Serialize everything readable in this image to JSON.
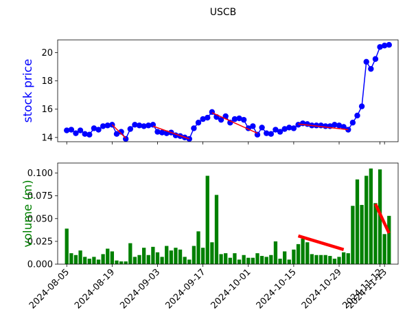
{
  "chart_data": {
    "title": "USCB",
    "shared_x_ticks": [
      "2024-08-05",
      "2024-08-19",
      "2024-09-03",
      "2024-09-17",
      "2024-10-01",
      "2024-10-15",
      "2024-10-29",
      "2024-11-12",
      "2024-11-13"
    ],
    "panels": [
      {
        "type": "line",
        "ylabel": "stock price",
        "ylabel_color": "#0000ff",
        "series_color": "#0000ff",
        "trend_color": "#ff0000",
        "ylim": [
          13.7,
          20.9
        ],
        "yticks": [
          "14",
          "16",
          "18",
          "20"
        ],
        "y": [
          14.5,
          14.55,
          14.3,
          14.5,
          14.25,
          14.2,
          14.65,
          14.55,
          14.8,
          14.85,
          14.9,
          14.25,
          14.4,
          13.9,
          14.6,
          14.9,
          14.85,
          14.8,
          14.85,
          14.9,
          14.4,
          14.35,
          14.3,
          14.35,
          14.15,
          14.1,
          14.0,
          13.9,
          14.65,
          15.05,
          15.3,
          15.4,
          15.8,
          15.45,
          15.25,
          15.5,
          15.05,
          15.3,
          15.35,
          15.25,
          14.65,
          14.8,
          14.2,
          14.7,
          14.3,
          14.25,
          14.55,
          14.4,
          14.6,
          14.7,
          14.65,
          14.9,
          15.0,
          14.95,
          14.85,
          14.85,
          14.85,
          14.8,
          14.8,
          14.9,
          14.85,
          14.75,
          14.55,
          15.05,
          15.55,
          16.2,
          19.35,
          18.85,
          19.55,
          20.4,
          20.5,
          20.55
        ],
        "trend_lines": [
          {
            "x": [
              10,
              13
            ],
            "y": [
              14.9,
              13.95
            ]
          },
          {
            "x": [
              19,
              27
            ],
            "y": [
              14.8,
              13.9
            ]
          },
          {
            "x": [
              32,
              42
            ],
            "y": [
              15.75,
              14.3
            ]
          },
          {
            "x": [
              51,
              62
            ],
            "y": [
              14.95,
              14.55
            ]
          }
        ]
      },
      {
        "type": "bar",
        "ylabel": "volume (m)",
        "ylabel_color": "#008000",
        "series_color": "#008000",
        "trend_color": "#ff0000",
        "ylim": [
          0,
          0.111
        ],
        "yticks": [
          "0.000",
          "0.025",
          "0.050",
          "0.075",
          "0.100"
        ],
        "values": [
          0.039,
          0.012,
          0.01,
          0.015,
          0.008,
          0.006,
          0.008,
          0.005,
          0.011,
          0.017,
          0.014,
          0.004,
          0.003,
          0.003,
          0.023,
          0.008,
          0.01,
          0.018,
          0.01,
          0.019,
          0.013,
          0.008,
          0.02,
          0.015,
          0.018,
          0.016,
          0.008,
          0.005,
          0.02,
          0.036,
          0.018,
          0.097,
          0.024,
          0.076,
          0.011,
          0.012,
          0.007,
          0.012,
          0.005,
          0.01,
          0.007,
          0.007,
          0.012,
          0.009,
          0.008,
          0.01,
          0.025,
          0.006,
          0.014,
          0.005,
          0.016,
          0.022,
          0.028,
          0.024,
          0.011,
          0.01,
          0.01,
          0.01,
          0.009,
          0.006,
          0.008,
          0.013,
          0.012,
          0.064,
          0.093,
          0.065,
          0.097,
          0.105,
          0.067,
          0.104,
          0.033,
          0.053
        ],
        "trend_lines": [
          {
            "x": [
              51,
              61
            ],
            "y": [
              0.031,
              0.016
            ]
          },
          {
            "x": [
              68,
              71
            ],
            "y": [
              0.066,
              0.034
            ]
          }
        ]
      }
    ]
  }
}
